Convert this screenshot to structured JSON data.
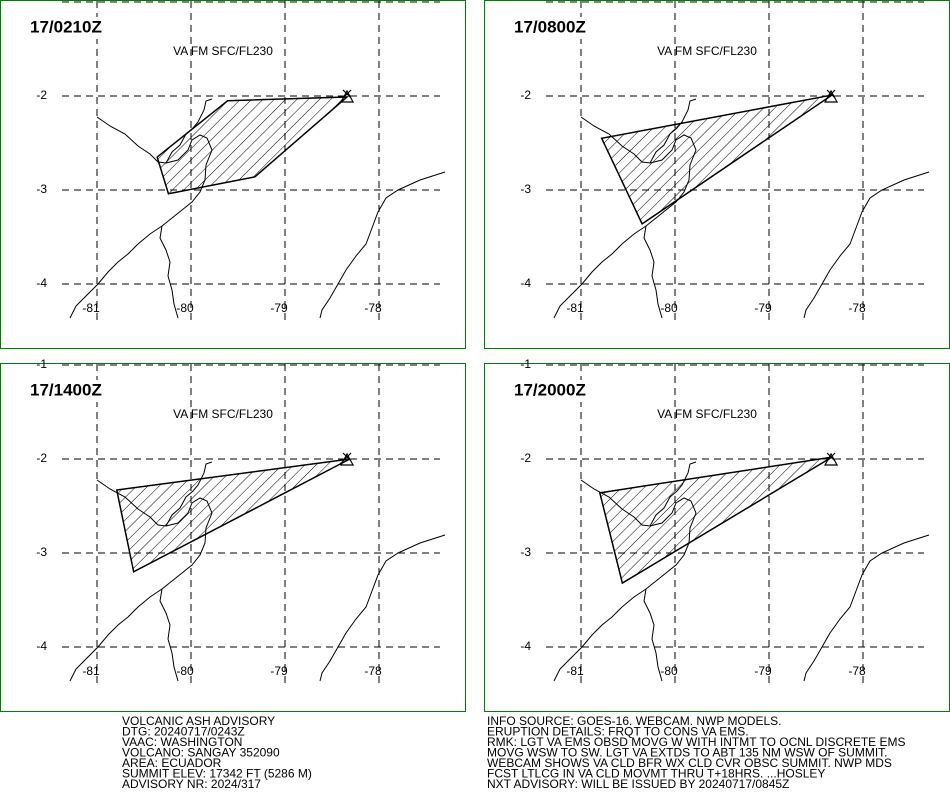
{
  "panels": [
    {
      "time": "17/0210Z",
      "level": "VA FM SFC/FL230",
      "volcano": [
        -78.34,
        -2.0
      ],
      "polygon": [
        [
          -80.36,
          -2.65
        ],
        [
          -80.24,
          -3.04
        ],
        [
          -79.32,
          -2.86
        ],
        [
          -78.34,
          -2.01
        ],
        [
          -79.61,
          -2.05
        ]
      ]
    },
    {
      "time": "17/0800Z",
      "level": "VA FM SFC/FL230",
      "volcano": [
        -78.34,
        -2.0
      ],
      "polygon": [
        [
          -80.78,
          -2.45
        ],
        [
          -80.35,
          -3.36
        ],
        [
          -78.33,
          -1.99
        ]
      ]
    },
    {
      "time": "17/1400Z",
      "level": "VA FM SFC/FL230",
      "volcano": [
        -78.34,
        -2.0
      ],
      "polygon": [
        [
          -80.79,
          -2.33
        ],
        [
          -80.61,
          -3.2
        ],
        [
          -78.31,
          -2.0
        ]
      ]
    },
    {
      "time": "17/2000Z",
      "level": "VA FM SFC/FL230",
      "volcano": [
        -78.34,
        -2.0
      ],
      "polygon": [
        [
          -80.8,
          -2.36
        ],
        [
          -80.56,
          -3.32
        ],
        [
          -78.33,
          -1.98
        ]
      ]
    }
  ],
  "lon_ticks": [
    -81,
    -80,
    -79,
    -78
  ],
  "lat_ticks": [
    -1,
    -2,
    -3,
    -4
  ],
  "advisory_left": [
    "VOLCANIC ASH ADVISORY",
    "DTG: 20240717/0243Z",
    "VAAC: WASHINGTON",
    "VOLCANO: SANGAY 352090",
    "AREA: ECUADOR",
    "SUMMIT ELEV: 17342 FT (5286 M)",
    "ADVISORY NR: 2024/317"
  ],
  "advisory_right": [
    "INFO SOURCE: GOES-16. WEBCAM. NWP MODELS.",
    "ERUPTION DETAILS: FRQT TO CONS VA EMS.",
    "RMK: LGT VA EMS OBSD MOVG W WITH INTMT TO OCNL DISCRETE EMS",
    "MOVG WSW TO SW. LGT VA EXTDS TO ABT 135 NM WSW OF SUMMIT.",
    "WEBCAM SHOWS VA CLD BFR WX CLD CVR OBSC SUMMIT. NWP MDS",
    "FCST LTLCG IN VA CLD MOVMT THRU T+18HRS. ...HOSLEY",
    "NXT ADVISORY: WILL BE ISSUED BY 20240717/0845Z"
  ]
}
